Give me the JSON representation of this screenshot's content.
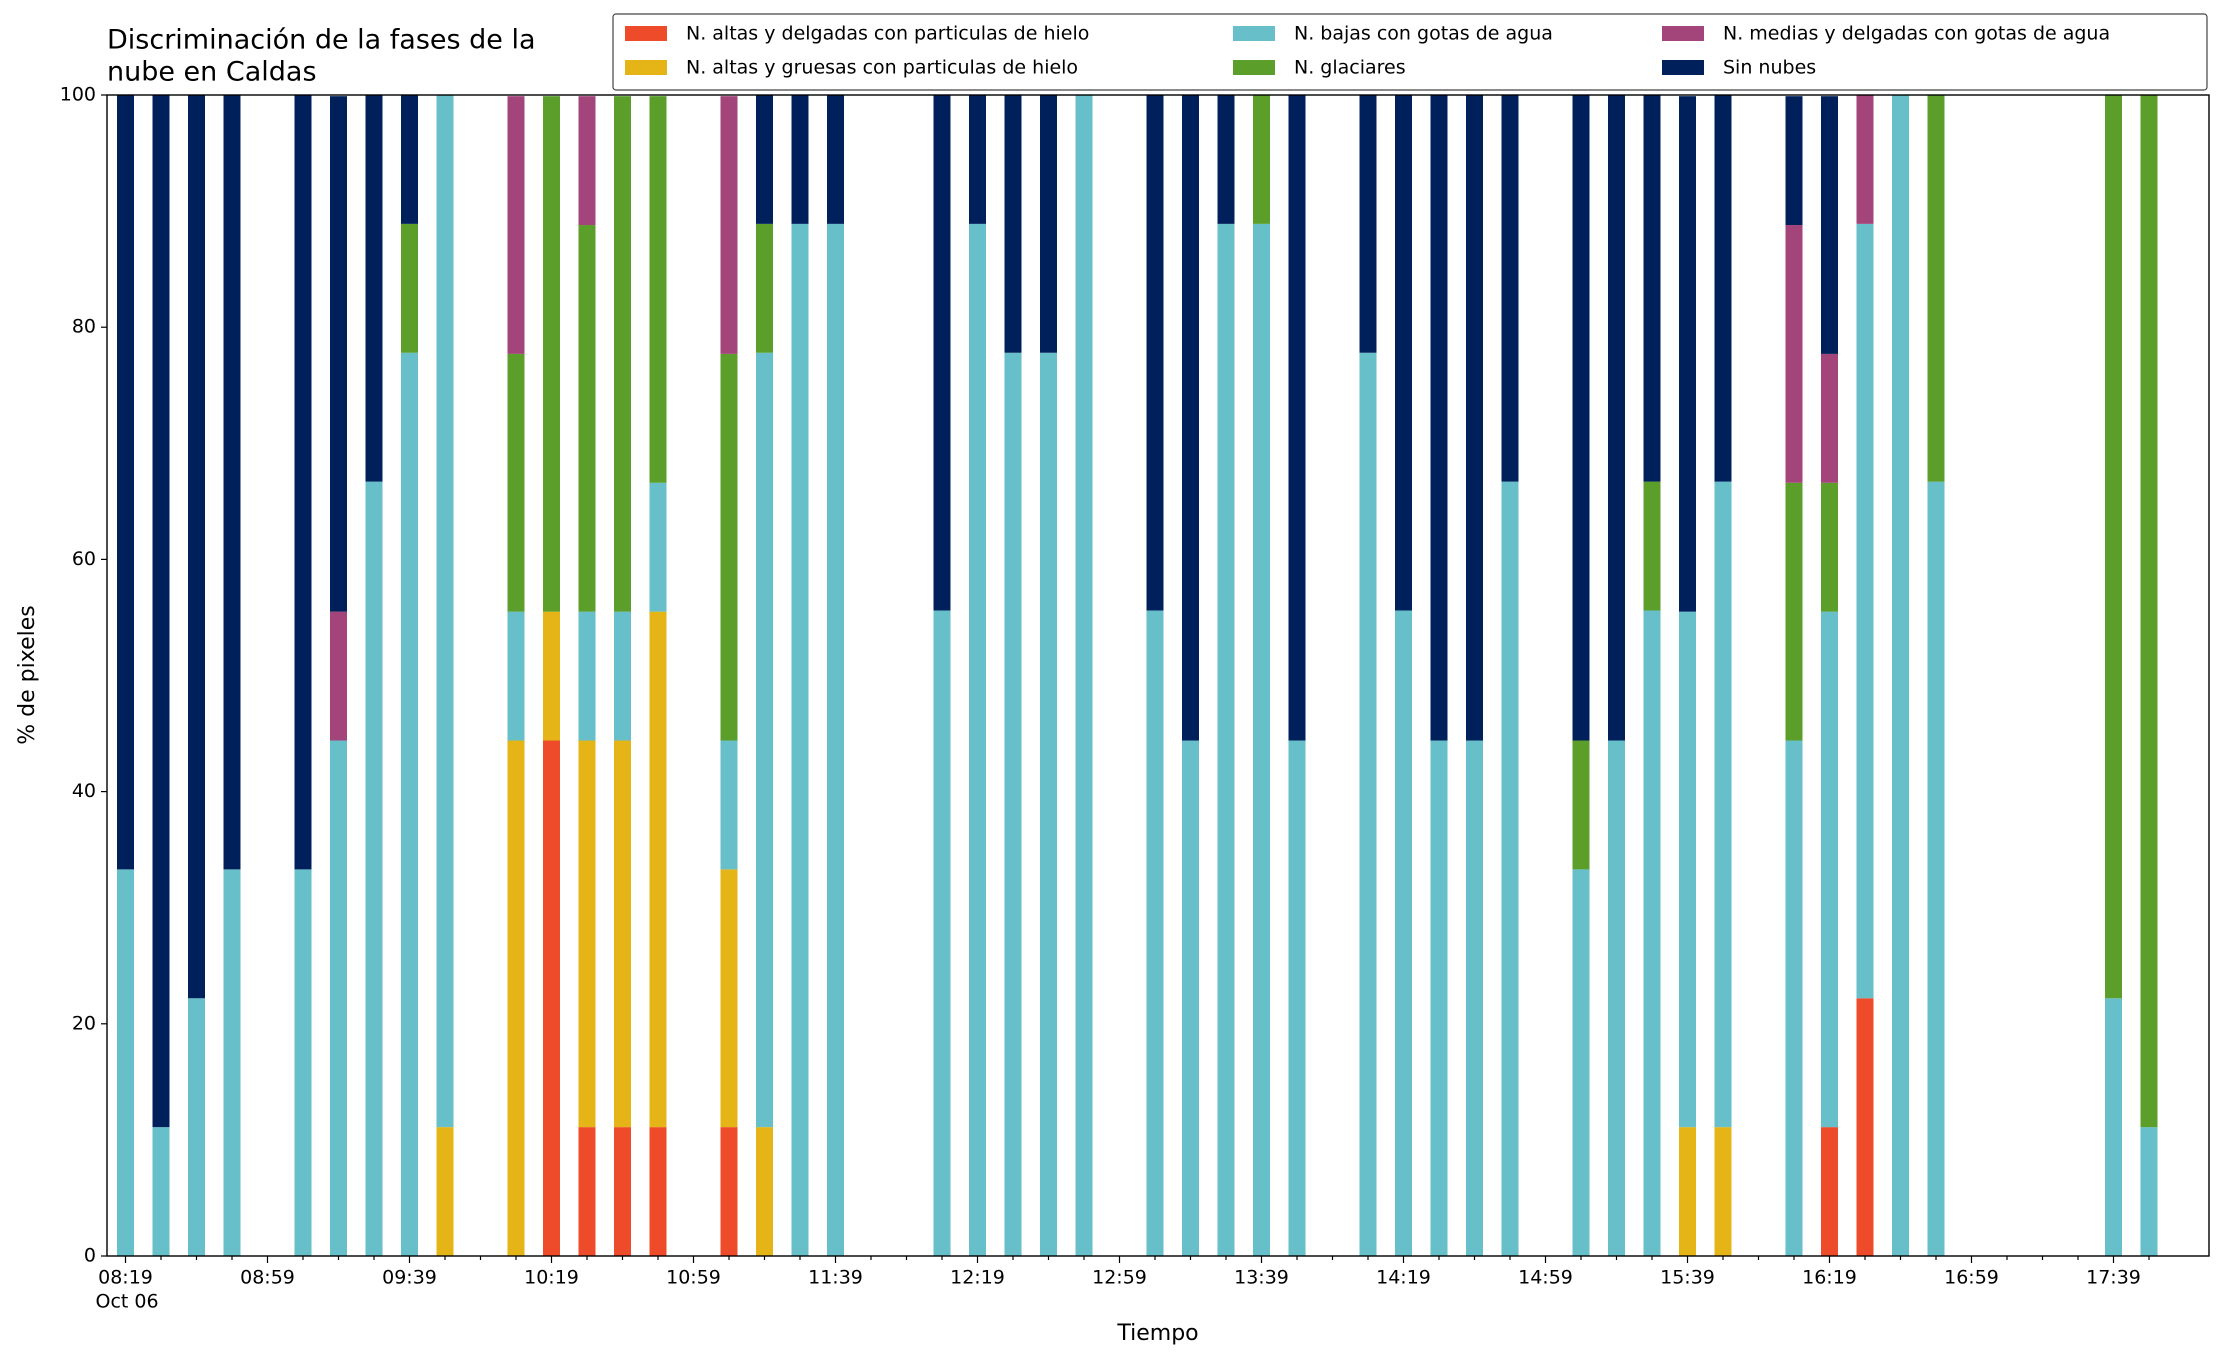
{
  "chart_data": {
    "type": "stacked_bar",
    "title": [
      "Discriminación de la fases de la",
      "nube en Caldas"
    ],
    "x_label": "Tiempo",
    "y_label": "% de pixeles",
    "x_date_label": "Oct 06",
    "categories": [
      "08:19",
      null,
      null,
      null,
      "08:59",
      null,
      null,
      null,
      "09:39",
      null,
      null,
      null,
      "10:19",
      null,
      null,
      null,
      "10:59",
      null,
      null,
      null,
      "11:39",
      null,
      null,
      null,
      "12:19",
      null,
      null,
      null,
      "12:59",
      null,
      null,
      null,
      "13:39",
      null,
      null,
      null,
      "14:19",
      null,
      null,
      null,
      "14:59",
      null,
      null,
      null,
      "15:39",
      null,
      null,
      null,
      "16:19",
      null,
      null,
      null,
      "16:59",
      null,
      null,
      null,
      "17:39",
      null
    ],
    "ylim": [
      0,
      100
    ],
    "yticks": [
      0,
      20,
      40,
      60,
      80,
      100
    ],
    "legend": "top-right",
    "series": [
      {
        "name": "N. altas y delgadas con particulas de hielo",
        "color": "#ee4b2b",
        "values": [
          0,
          0,
          0,
          0,
          0,
          0,
          0,
          0,
          0,
          0,
          0,
          0,
          44.4,
          11.1,
          11.1,
          11.1,
          0,
          11.1,
          0,
          0,
          0,
          0,
          0,
          0,
          0,
          0,
          0,
          0,
          0,
          0,
          0,
          0,
          0,
          0,
          0,
          0,
          0,
          0,
          0,
          0,
          0,
          0,
          0,
          0,
          0,
          0,
          0,
          0,
          11.1,
          22.2,
          0,
          0,
          0,
          0,
          0,
          0,
          0,
          0
        ]
      },
      {
        "name": "N. altas y gruesas con particulas de hielo",
        "color": "#e5b517",
        "values": [
          0,
          0,
          0,
          0,
          0,
          0,
          0,
          0,
          0,
          11.1,
          0,
          44.4,
          11.1,
          33.3,
          33.3,
          44.4,
          0,
          22.2,
          11.1,
          0,
          0,
          0,
          0,
          0,
          0,
          0,
          0,
          0,
          0,
          0,
          0,
          0,
          0,
          0,
          0,
          0,
          0,
          0,
          0,
          0,
          0,
          0,
          0,
          0,
          11.1,
          11.1,
          0,
          0,
          0,
          0,
          0,
          0,
          0,
          0,
          0,
          0,
          0,
          0
        ]
      },
      {
        "name": "N. bajas con gotas de agua",
        "color": "#66bfc9",
        "values": [
          33.3,
          11.1,
          22.2,
          33.3,
          0,
          33.3,
          44.4,
          66.7,
          77.8,
          88.9,
          0,
          11.1,
          0,
          11.1,
          11.1,
          11.1,
          0,
          11.1,
          66.7,
          88.9,
          88.9,
          0,
          0,
          55.6,
          88.9,
          77.8,
          77.8,
          100,
          0,
          55.6,
          44.4,
          88.9,
          88.9,
          44.4,
          0,
          77.8,
          55.6,
          44.4,
          44.4,
          66.7,
          0,
          33.3,
          44.4,
          55.6,
          44.4,
          55.6,
          0,
          44.4,
          44.4,
          66.7,
          100,
          66.7,
          0,
          0,
          0,
          0,
          22.2,
          11.1
        ]
      },
      {
        "name": "N. glaciares",
        "color": "#5b9e2a",
        "values": [
          0,
          0,
          0,
          0,
          0,
          0,
          0,
          0,
          11.1,
          0,
          0,
          22.2,
          44.4,
          33.3,
          44.4,
          33.3,
          0,
          33.3,
          11.1,
          0,
          0,
          0,
          0,
          0,
          0,
          0,
          0,
          0,
          0,
          0,
          0,
          0,
          11.1,
          0,
          0,
          0,
          0,
          0,
          0,
          0,
          0,
          11.1,
          0,
          11.1,
          0,
          0,
          0,
          22.2,
          11.1,
          0,
          0,
          33.3,
          0,
          0,
          0,
          0,
          77.8,
          88.9
        ]
      },
      {
        "name": "N. medias y delgadas con gotas de agua",
        "color": "#a3447b",
        "values": [
          0,
          0,
          0,
          0,
          0,
          0,
          11.1,
          0,
          0,
          0,
          0,
          22.2,
          0,
          11.1,
          0,
          0,
          0,
          22.2,
          0,
          0,
          0,
          0,
          0,
          0,
          0,
          0,
          0,
          0,
          0,
          0,
          0,
          0,
          0,
          0,
          0,
          0,
          0,
          0,
          0,
          0,
          0,
          0,
          0,
          0,
          0,
          0,
          0,
          22.2,
          11.1,
          11.1,
          0,
          0,
          0,
          0,
          0,
          0,
          0,
          0
        ]
      },
      {
        "name": "Sin nubes",
        "color": "#00205b",
        "values": [
          66.7,
          88.9,
          77.8,
          66.7,
          0,
          66.7,
          44.4,
          33.3,
          11.1,
          0,
          0,
          0,
          0,
          0,
          0,
          0,
          0,
          0,
          11.1,
          11.1,
          11.1,
          0,
          0,
          44.4,
          11.1,
          22.2,
          22.2,
          0,
          0,
          44.4,
          55.6,
          11.1,
          0,
          55.6,
          0,
          22.2,
          44.4,
          55.6,
          55.6,
          33.3,
          0,
          55.6,
          55.6,
          33.3,
          44.4,
          33.3,
          0,
          11.1,
          22.2,
          0,
          0,
          0,
          0,
          0,
          0,
          0,
          0,
          0
        ]
      }
    ]
  }
}
